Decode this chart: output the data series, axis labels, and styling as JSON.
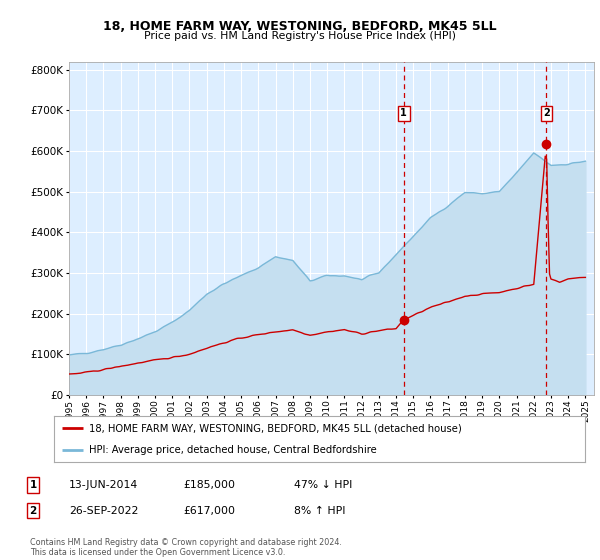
{
  "title": "18, HOME FARM WAY, WESTONING, BEDFORD, MK45 5LL",
  "subtitle": "Price paid vs. HM Land Registry's House Price Index (HPI)",
  "hpi_label": "HPI: Average price, detached house, Central Bedfordshire",
  "property_label": "18, HOME FARM WAY, WESTONING, BEDFORD, MK45 5LL (detached house)",
  "sale1_date": "13-JUN-2014",
  "sale1_price": 185000,
  "sale1_pct": "47% ↓ HPI",
  "sale2_date": "26-SEP-2022",
  "sale2_price": 617000,
  "sale2_pct": "8% ↑ HPI",
  "sale1_year": 2014.45,
  "sale2_year": 2022.73,
  "hpi_color": "#7ab8d8",
  "hpi_fill_color": "#c5dff0",
  "price_color": "#cc0000",
  "vline_color": "#cc0000",
  "plot_bg_color": "#ddeeff",
  "grid_color": "#ffffff",
  "footer": "Contains HM Land Registry data © Crown copyright and database right 2024.\nThis data is licensed under the Open Government Licence v3.0.",
  "ylim": [
    0,
    820000
  ],
  "xlim_start": 1995.0,
  "xlim_end": 2025.5,
  "hpi_anchors_x": [
    1995,
    1996,
    1997,
    1998,
    1999,
    2000,
    2001,
    2002,
    2003,
    2004,
    2005,
    2006,
    2007,
    2008,
    2009,
    2010,
    2011,
    2012,
    2013,
    2014,
    2015,
    2016,
    2017,
    2018,
    2019,
    2020,
    2021,
    2022,
    2023,
    2024,
    2025
  ],
  "hpi_anchors_y": [
    97000,
    103000,
    112000,
    123000,
    138000,
    155000,
    178000,
    208000,
    248000,
    273000,
    293000,
    313000,
    340000,
    330000,
    280000,
    293000,
    293000,
    283000,
    300000,
    345000,
    390000,
    435000,
    465000,
    498000,
    495000,
    500000,
    545000,
    595000,
    565000,
    568000,
    575000
  ],
  "price_anchors_x": [
    1995,
    1996,
    1997,
    1998,
    1999,
    2000,
    2001,
    2002,
    2003,
    2004,
    2005,
    2006,
    2007,
    2008,
    2009,
    2010,
    2011,
    2012,
    2013,
    2014.0,
    2014.45,
    2015,
    2016,
    2017,
    2018,
    2019,
    2020,
    2021,
    2022.0,
    2022.73,
    2022.9,
    2023,
    2023.5,
    2024,
    2025
  ],
  "price_anchors_y": [
    50000,
    55000,
    62000,
    70000,
    78000,
    85000,
    92000,
    100000,
    115000,
    128000,
    140000,
    148000,
    155000,
    160000,
    147000,
    155000,
    160000,
    150000,
    158000,
    163000,
    185000,
    195000,
    215000,
    228000,
    243000,
    248000,
    252000,
    262000,
    272000,
    617000,
    300000,
    285000,
    278000,
    285000,
    290000
  ]
}
